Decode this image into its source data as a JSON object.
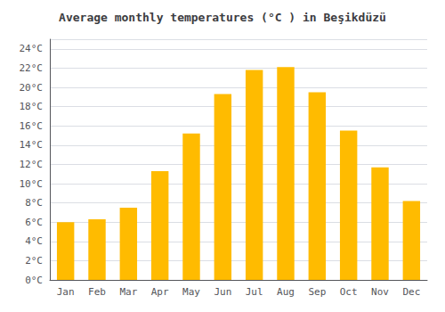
{
  "chart_data": {
    "type": "bar",
    "title": "Average monthly temperatures (°C ) in Beşikdüzü",
    "categories": [
      "Jan",
      "Feb",
      "Mar",
      "Apr",
      "May",
      "Jun",
      "Jul",
      "Aug",
      "Sep",
      "Oct",
      "Nov",
      "Dec"
    ],
    "values": [
      6.0,
      6.3,
      7.5,
      11.3,
      15.2,
      19.3,
      21.8,
      22.1,
      19.5,
      15.5,
      11.7,
      8.2
    ],
    "color": "#FFBB00",
    "ylim": [
      0,
      25
    ],
    "yticks": [
      {
        "value": 0,
        "label": "0°C"
      },
      {
        "value": 2,
        "label": "2°C"
      },
      {
        "value": 4,
        "label": "4°C"
      },
      {
        "value": 6,
        "label": "6°C"
      },
      {
        "value": 8,
        "label": "8°C"
      },
      {
        "value": 10,
        "label": "10°C"
      },
      {
        "value": 12,
        "label": "12°C"
      },
      {
        "value": 14,
        "label": "14°C"
      },
      {
        "value": 16,
        "label": "16°C"
      },
      {
        "value": 18,
        "label": "18°C"
      },
      {
        "value": 20,
        "label": "20°C"
      },
      {
        "value": 22,
        "label": "22°C"
      },
      {
        "value": 24,
        "label": "24°C"
      }
    ],
    "grid": true
  }
}
